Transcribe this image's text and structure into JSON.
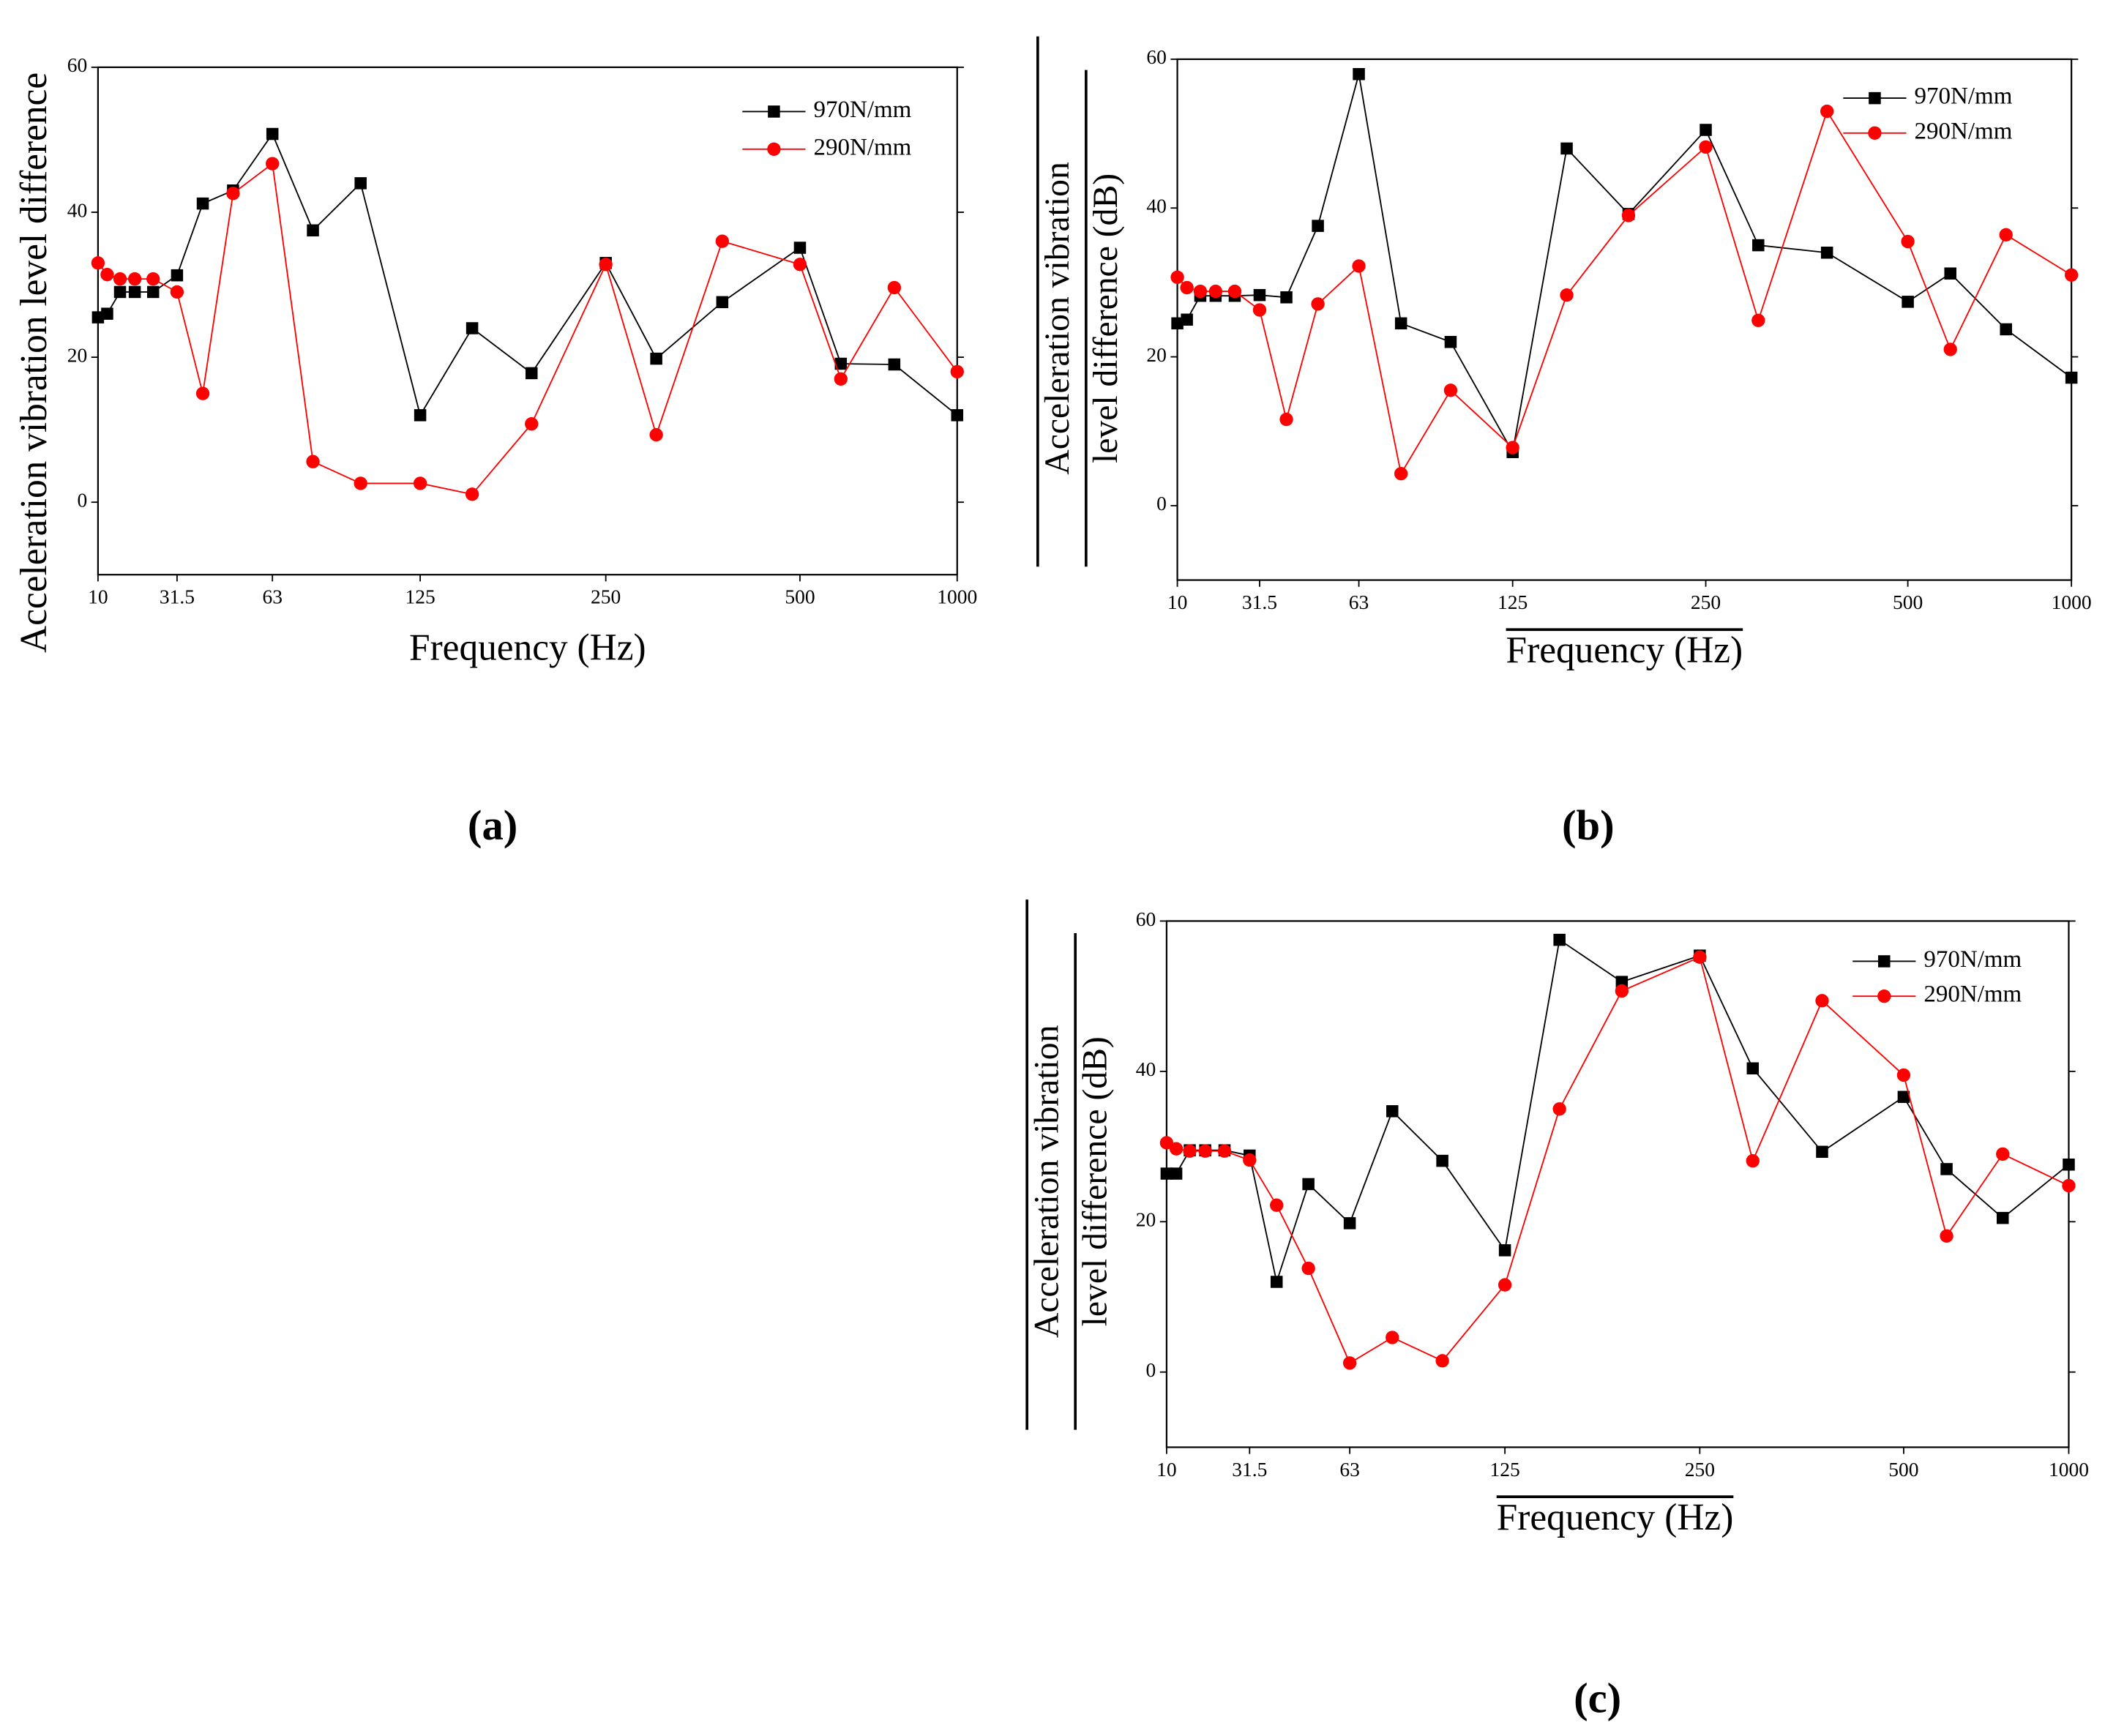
{
  "chart_data": [
    {
      "type": "line",
      "panel_label": "(a)",
      "xlabel": "Frequency (Hz)",
      "ylabel": [
        "Acceleration vibration level difference"
      ],
      "xlim": [
        10,
        1000
      ],
      "xticks": [
        10,
        31.5,
        63,
        125,
        250,
        500,
        1000
      ],
      "ylim": [
        -10,
        60
      ],
      "yticks": [
        0,
        20,
        40,
        60
      ],
      "legend": "upper right",
      "x": [
        10,
        12.5,
        16,
        20,
        25,
        31.5,
        40,
        50,
        63,
        80,
        100,
        125,
        160,
        200,
        250,
        315,
        400,
        500,
        630,
        800,
        1000
      ],
      "series": [
        {
          "name": "970N/mm",
          "color": "#000000",
          "marker": "square",
          "values": [
            25.5,
            26,
            29,
            29,
            29,
            31.3,
            41.2,
            43,
            50.8,
            37.5,
            44,
            12,
            24,
            17.8,
            33,
            19.8,
            27.6,
            35.1,
            19.1,
            19,
            12
          ]
        },
        {
          "name": "290N/mm",
          "color": "#ff0000",
          "marker": "circle",
          "values": [
            33,
            31.4,
            30.8,
            30.8,
            30.8,
            29,
            15,
            42.6,
            46.7,
            5.6,
            2.6,
            2.6,
            1.1,
            10.8,
            32.8,
            9.3,
            36,
            32.8,
            17,
            29.6,
            18
          ]
        }
      ]
    },
    {
      "type": "line",
      "panel_label": "(b)",
      "xlabel": "Frequency (Hz)",
      "ylabel": [
        "Acceleration vibration",
        "level difference (dB)"
      ],
      "xlim": [
        10,
        1000
      ],
      "xticks": [
        10,
        31.5,
        63,
        125,
        250,
        500,
        1000
      ],
      "ylim": [
        -10,
        60
      ],
      "yticks": [
        0,
        20,
        40,
        60
      ],
      "legend": "upper right",
      "x": [
        10,
        12.5,
        16,
        20,
        25,
        31.5,
        40,
        50,
        63,
        80,
        100,
        125,
        160,
        200,
        250,
        315,
        400,
        500,
        630,
        800,
        1000
      ],
      "series": [
        {
          "name": "970N/mm",
          "color": "#000000",
          "marker": "square",
          "values": [
            24.5,
            25,
            28.2,
            28.2,
            28.2,
            28.3,
            28,
            37.6,
            58,
            24.5,
            22,
            7.2,
            48,
            39.2,
            50.5,
            35,
            34,
            27.4,
            31.2,
            23.7,
            17.2
          ]
        },
        {
          "name": "290N/mm",
          "color": "#ff0000",
          "marker": "circle",
          "values": [
            30.7,
            29.3,
            28.8,
            28.8,
            28.8,
            26.3,
            11.6,
            27.1,
            32.2,
            4.3,
            15.5,
            7.8,
            28.3,
            39,
            48.2,
            24.9,
            53,
            35.5,
            21,
            36.4,
            31
          ]
        }
      ]
    },
    {
      "type": "line",
      "panel_label": "(c)",
      "xlabel": "Frequency (Hz)",
      "ylabel": [
        "Acceleration vibration",
        "level difference (dB)"
      ],
      "xlim": [
        10,
        1000
      ],
      "xticks": [
        10,
        31.5,
        63,
        125,
        250,
        500,
        1000
      ],
      "ylim": [
        -10,
        60
      ],
      "yticks": [
        0,
        20,
        40,
        60
      ],
      "legend": "upper right",
      "x": [
        10,
        12.5,
        16,
        20,
        25,
        31.5,
        40,
        50,
        63,
        80,
        100,
        125,
        160,
        200,
        250,
        315,
        400,
        500,
        630,
        800,
        1000
      ],
      "series": [
        {
          "name": "970N/mm",
          "color": "#000000",
          "marker": "square",
          "values": [
            26.4,
            26.4,
            29.5,
            29.5,
            29.5,
            28.8,
            12,
            25,
            19.8,
            34.7,
            28.1,
            16.2,
            57.5,
            51.9,
            55.4,
            40.4,
            29.3,
            36.6,
            27,
            20.5,
            27.6
          ]
        },
        {
          "name": "290N/mm",
          "color": "#ff0000",
          "marker": "circle",
          "values": [
            30.5,
            29.7,
            29.4,
            29.4,
            29.4,
            28.2,
            22.2,
            13.8,
            1.2,
            4.6,
            1.5,
            11.6,
            35,
            50.7,
            55.2,
            28.1,
            49.4,
            39.5,
            18.1,
            29,
            24.8
          ]
        }
      ]
    }
  ]
}
